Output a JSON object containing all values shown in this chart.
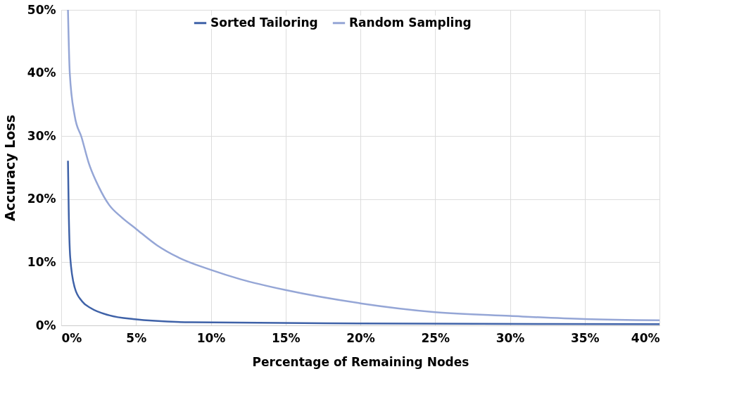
{
  "chart_data": {
    "type": "line",
    "xlabel": "Percentage of Remaining Nodes",
    "ylabel": "Accuracy Loss",
    "xlim": [
      0,
      40
    ],
    "ylim": [
      0,
      50
    ],
    "xticks": [
      {
        "value": 0,
        "label": "0%"
      },
      {
        "value": 5,
        "label": "5%"
      },
      {
        "value": 10,
        "label": "10%"
      },
      {
        "value": 15,
        "label": "15%"
      },
      {
        "value": 20,
        "label": "20%"
      },
      {
        "value": 25,
        "label": "25%"
      },
      {
        "value": 30,
        "label": "30%"
      },
      {
        "value": 35,
        "label": "35%"
      },
      {
        "value": 40,
        "label": "40%"
      }
    ],
    "yticks": [
      {
        "value": 0,
        "label": "0%"
      },
      {
        "value": 10,
        "label": "10%"
      },
      {
        "value": 20,
        "label": "20%"
      },
      {
        "value": 30,
        "label": "30%"
      },
      {
        "value": 40,
        "label": "40%"
      },
      {
        "value": 50,
        "label": "50%"
      }
    ],
    "grid": true,
    "legend": "top",
    "line_style": "solid",
    "marker": "none",
    "series": [
      {
        "name": "Sorted Tailoring",
        "color": "#3f62a8",
        "x": [
          0.45,
          0.5,
          0.6,
          0.9,
          1.4,
          2.0,
          3.2,
          4.8,
          8.7,
          20,
          40
        ],
        "values": [
          26.1,
          18.3,
          10.8,
          6.0,
          3.8,
          2.7,
          1.6,
          1.0,
          0.5,
          0.3,
          0.2
        ]
      },
      {
        "name": "Random Sampling",
        "color": "#95a6d6",
        "x": [
          0.45,
          0.57,
          0.9,
          1.36,
          1.83,
          2.5,
          3.2,
          4.0,
          5,
          6.4,
          7.8,
          10,
          12,
          15,
          20,
          25,
          30,
          35,
          40
        ],
        "values": [
          50,
          40,
          33.2,
          29.8,
          25.8,
          22,
          19.1,
          17.2,
          15.3,
          12.7,
          10.8,
          8.8,
          7.3,
          5.6,
          3.5,
          2.1,
          1.5,
          1.0,
          0.8
        ]
      }
    ]
  }
}
